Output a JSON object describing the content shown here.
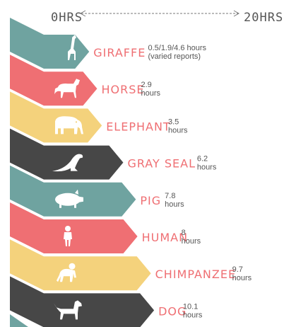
{
  "axis": {
    "start_label": "0HRS",
    "end_label": "20HRS"
  },
  "colors": {
    "teal": "#6fa3a0",
    "coral": "#ef6f73",
    "yellow": "#f4d27c",
    "charcoal": "#474747"
  },
  "chart_data": {
    "type": "bar",
    "xlim": [
      0,
      20
    ],
    "x_unit": "hours",
    "categories": [
      "GIRAFFE",
      "HORSE",
      "ELEPHANT",
      "GRAY SEAL",
      "PIG",
      "HUMAN",
      "CHIMPANZEE",
      "DOG"
    ],
    "values": [
      1.9,
      2.9,
      3.5,
      6.2,
      7.8,
      8,
      9.7,
      10.1
    ],
    "value_labels": [
      [
        "0.5/1.9/4.6 hours",
        "(varied reports)"
      ],
      [
        "2.9",
        "hours"
      ],
      [
        "3.5",
        "hours"
      ],
      [
        "6.2",
        "hours"
      ],
      [
        "7.8",
        "hours"
      ],
      [
        "8",
        "hours"
      ],
      [
        "9.7",
        "hours"
      ],
      [
        "10.1",
        "hours"
      ]
    ],
    "bar_colors": [
      "#6fa3a0",
      "#ef6f73",
      "#f4d27c",
      "#474747",
      "#6fa3a0",
      "#ef6f73",
      "#f4d27c",
      "#474747"
    ],
    "icons": [
      "giraffe-icon",
      "horse-icon",
      "elephant-icon",
      "seal-icon",
      "pig-icon",
      "human-icon",
      "chimpanzee-icon",
      "dog-icon"
    ]
  }
}
